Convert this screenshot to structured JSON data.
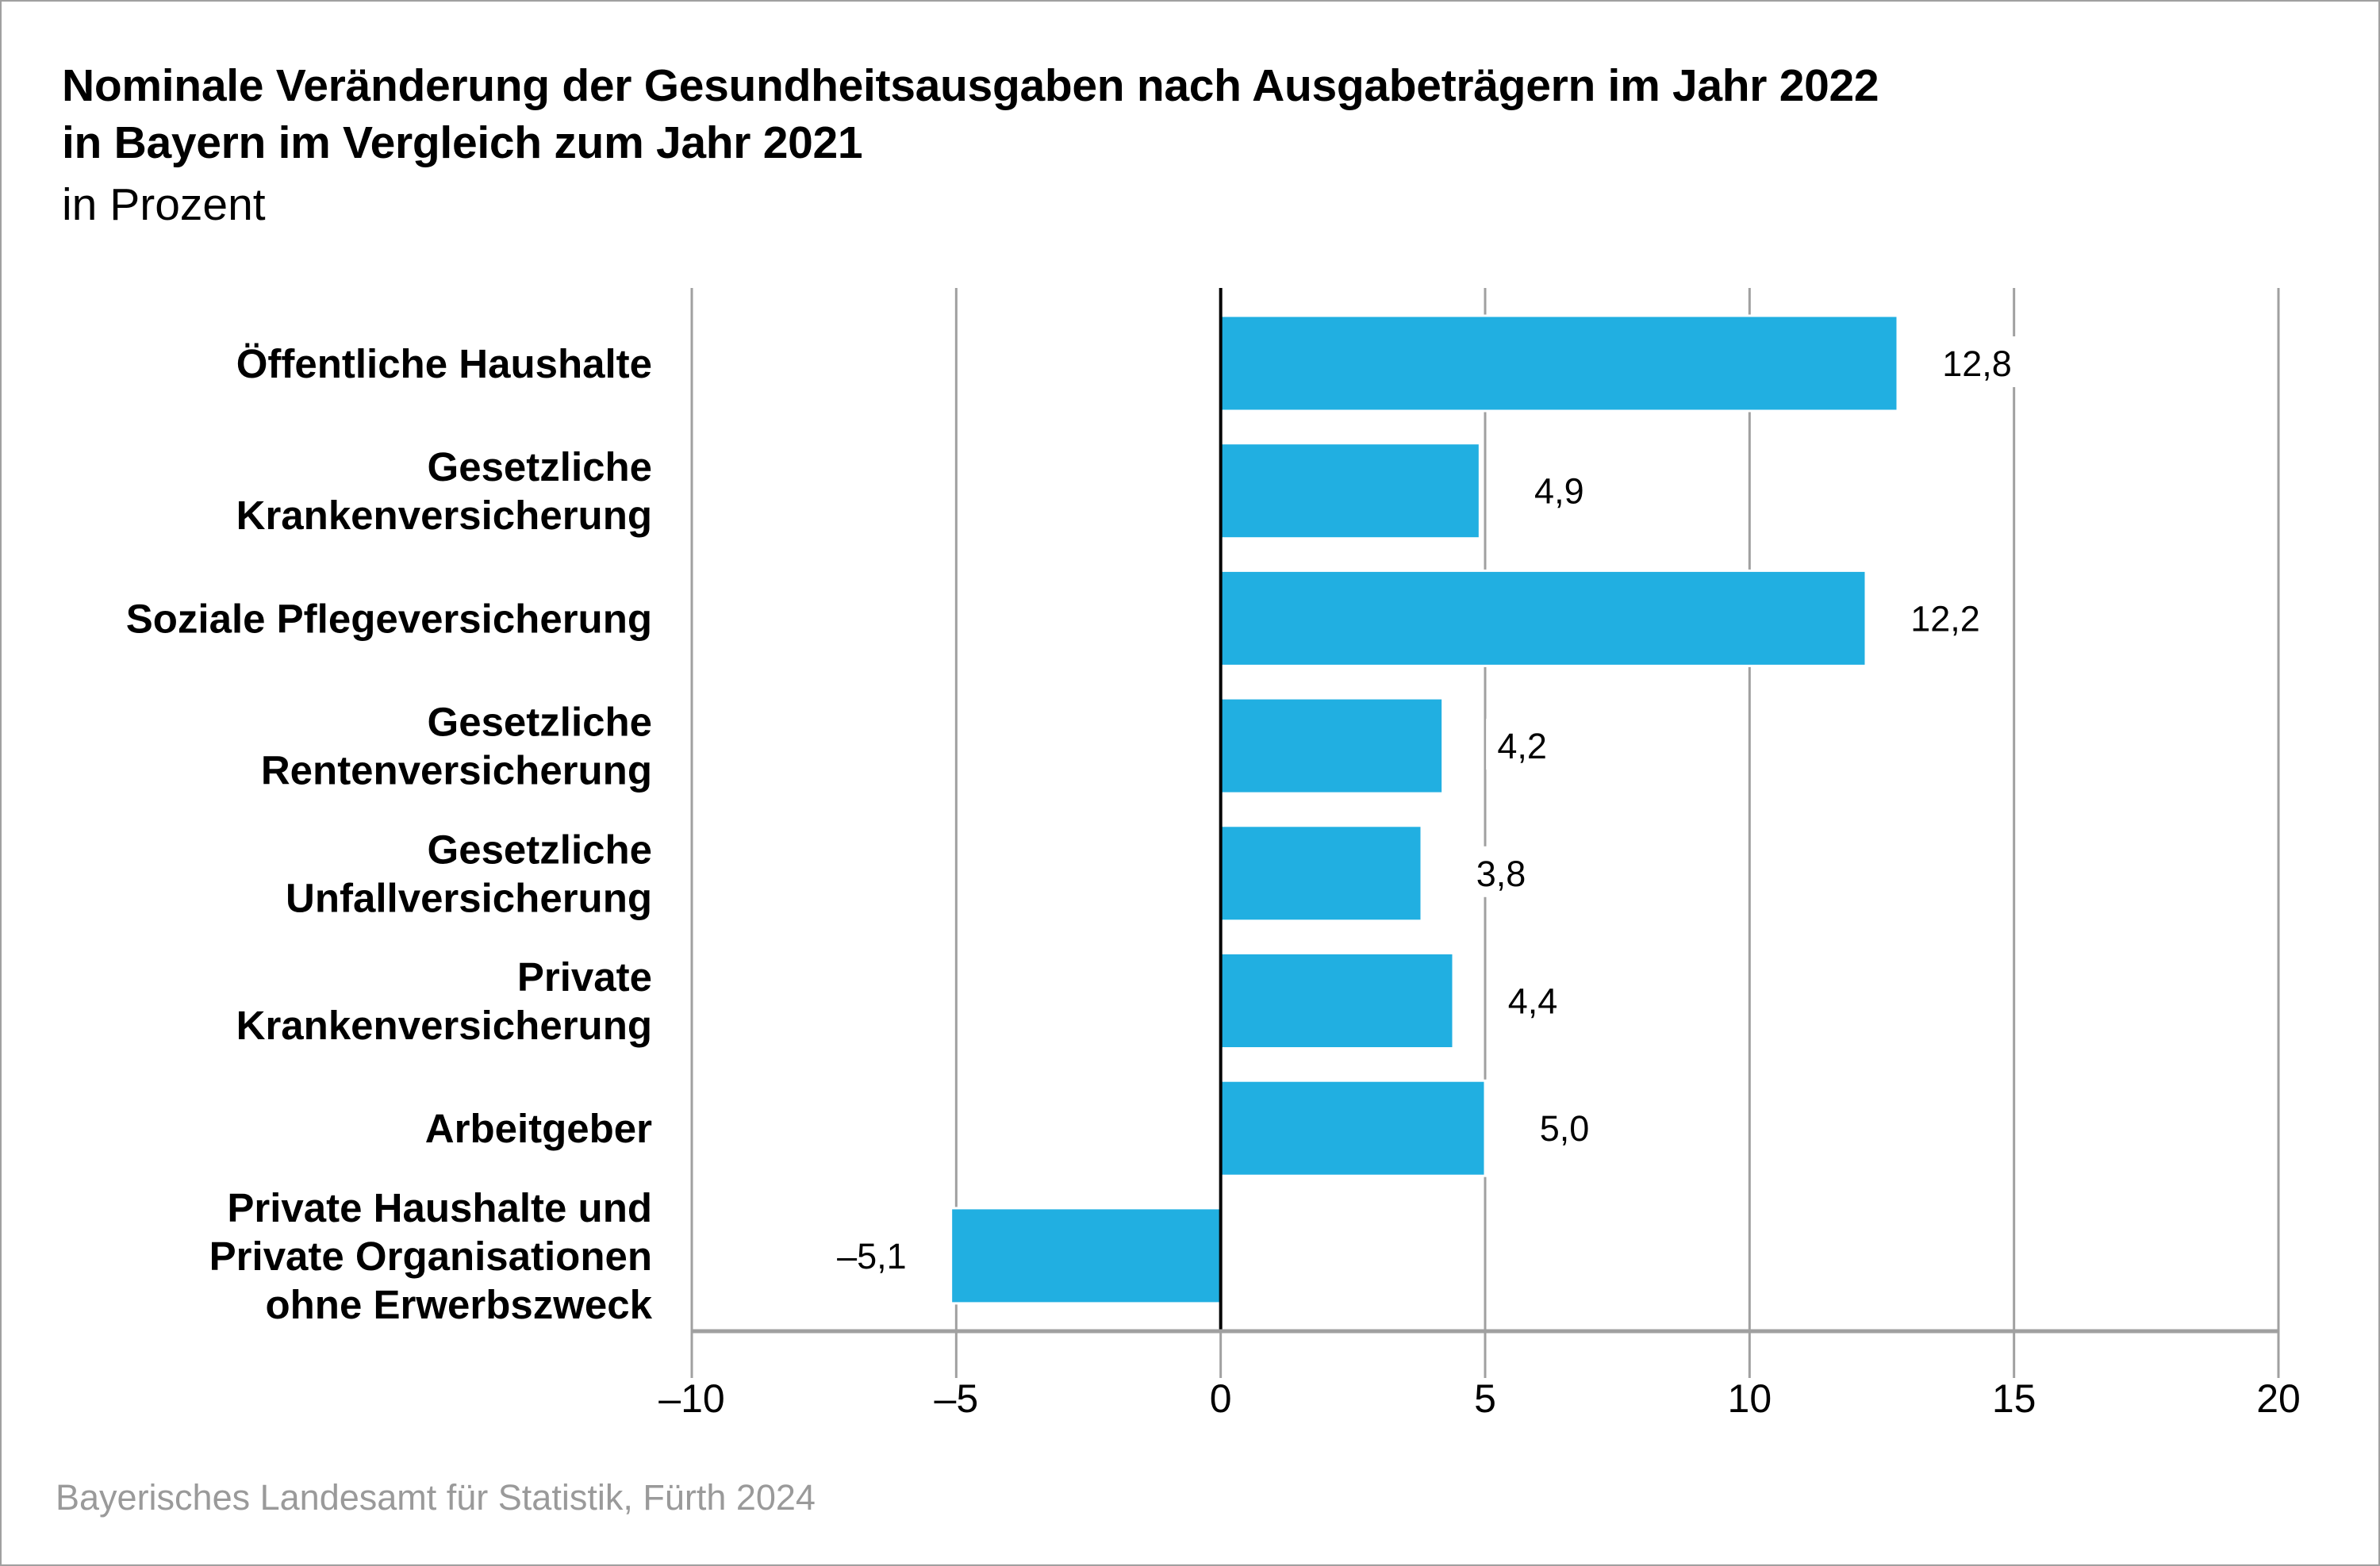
{
  "header": {
    "title_line1": "Nominale Veränderung der Gesundheitsausgaben nach Ausgabeträgern im Jahr 2022",
    "title_line2": "in Bayern im Vergleich zum Jahr 2021",
    "subtitle": "in Prozent"
  },
  "footer": {
    "source": "Bayerisches Landesamt für Statistik, Fürth 2024"
  },
  "colors": {
    "bar": "#21afe1",
    "gridline": "#a0a0a0",
    "zero_line": "#000000",
    "source_text": "#9a9a9a"
  },
  "chart_data": {
    "type": "bar",
    "orientation": "horizontal",
    "title": "Nominale Veränderung der Gesundheitsausgaben nach Ausgabeträgern im Jahr 2022 in Bayern im Vergleich zum Jahr 2021",
    "subtitle": "in Prozent",
    "xlabel": "",
    "ylabel": "",
    "xlim": [
      -10,
      20
    ],
    "x_ticks": [
      -10,
      -5,
      0,
      5,
      10,
      15,
      20
    ],
    "x_tick_labels": [
      "–10",
      "–5",
      "0",
      "5",
      "10",
      "15",
      "20"
    ],
    "grid": true,
    "legend": "none",
    "categories": [
      [
        "Öffentliche Haushalte"
      ],
      [
        "Gesetzliche",
        "Krankenversicherung"
      ],
      [
        "Soziale Pflegeversicherung"
      ],
      [
        "Gesetzliche",
        "Rentenversicherung"
      ],
      [
        "Gesetzliche",
        "Unfallversicherung"
      ],
      [
        "Private",
        "Krankenversicherung"
      ],
      [
        "Arbeitgeber"
      ],
      [
        "Private Haushalte und",
        "Private Organisationen",
        "ohne Erwerbszweck"
      ]
    ],
    "values": [
      12.8,
      4.9,
      12.2,
      4.2,
      3.8,
      4.4,
      5.0,
      -5.1
    ],
    "value_labels": [
      "12,8",
      "4,9",
      "12,2",
      "4,2",
      "3,8",
      "4,4",
      "5,0",
      "–5,1"
    ]
  }
}
